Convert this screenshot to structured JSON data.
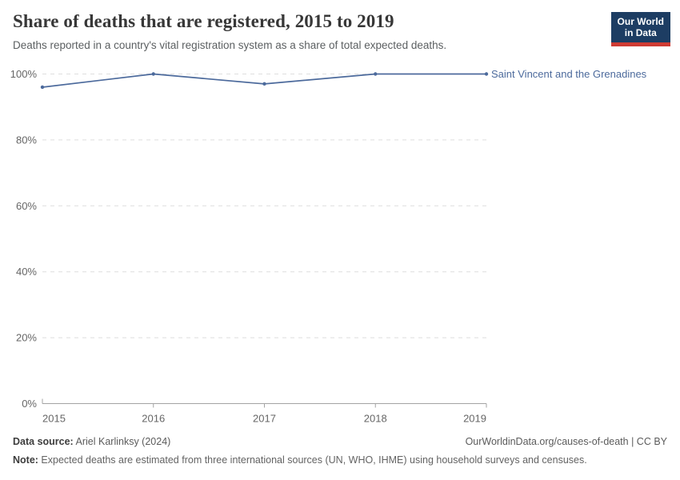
{
  "header": {
    "title": "Share of deaths that are registered, 2015 to 2019",
    "subtitle": "Deaths reported in a country's vital registration system as a share of total expected deaths.",
    "logo": {
      "line1": "Our World",
      "line2": "in Data",
      "bg_color": "#1d3d63",
      "bar_color": "#cf3b33"
    }
  },
  "chart_data": {
    "type": "line",
    "title": "Share of deaths that are registered, 2015 to 2019",
    "x": [
      2015,
      2016,
      2017,
      2018,
      2019
    ],
    "series": [
      {
        "name": "Saint Vincent and the Grenadines",
        "values": [
          96,
          100,
          97,
          100,
          100
        ],
        "color": "#4C6A9C"
      }
    ],
    "xlabel": "",
    "ylabel": "",
    "ylim": [
      0,
      100
    ],
    "yticks": [
      0,
      20,
      40,
      60,
      80,
      100
    ],
    "ytick_format": "{v}%",
    "grid": "horizontal-dashed",
    "legend_position": "end-of-line-label",
    "colors": {
      "grid": "#dedede",
      "axis": "#a3a3a3",
      "tick_text": "#666666"
    }
  },
  "footer": {
    "datasource_label": "Data source:",
    "datasource_value": " Ariel Karlinksy (2024)",
    "link": "OurWorldinData.org/causes-of-death | CC BY",
    "note_label": "Note:",
    "note_value": " Expected deaths are estimated from three international sources (UN, WHO, IHME) using household surveys and censuses."
  }
}
